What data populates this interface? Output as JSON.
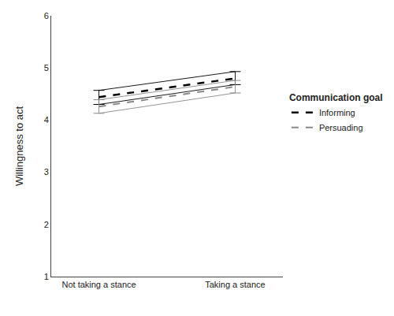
{
  "chart_data": {
    "type": "line",
    "ylabel": "Willingness to act",
    "categories": [
      "Not taking a stance",
      "Taking a stance"
    ],
    "series": [
      {
        "name": "Informing",
        "color": "#000000",
        "line_style": "dash",
        "values": [
          4.44,
          4.8
        ],
        "ci_lower": [
          4.3,
          4.68
        ],
        "ci_upper": [
          4.57,
          4.93
        ]
      },
      {
        "name": "Persuading",
        "color": "#888888",
        "line_style": "dash",
        "values": [
          4.26,
          4.64
        ],
        "ci_lower": [
          4.13,
          4.52
        ],
        "ci_upper": [
          4.39,
          4.76
        ]
      }
    ],
    "ylim": [
      1,
      6
    ],
    "yticks": [
      1,
      2,
      3,
      4,
      5,
      6
    ],
    "grid": false,
    "legend": "right",
    "legend_title": "Communication goal"
  }
}
